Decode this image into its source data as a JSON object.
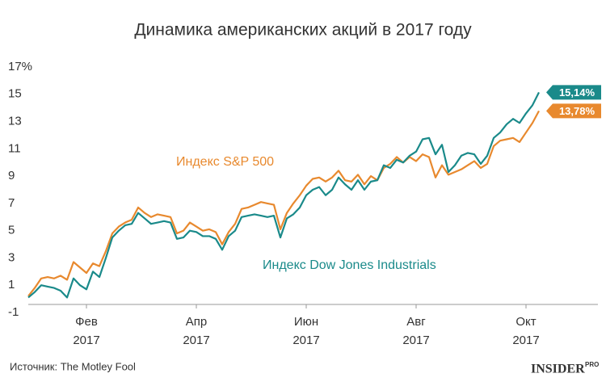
{
  "chart_data": {
    "type": "line",
    "title": "Динамика американских акций в 2017 году",
    "categories": [
      null,
      null,
      null,
      null,
      null,
      null,
      null,
      null,
      null,
      [
        "Фев",
        "2017"
      ],
      null,
      null,
      null,
      null,
      null,
      null,
      null,
      null,
      null,
      null,
      null,
      null,
      null,
      null,
      null,
      null,
      [
        "Апр",
        "2017"
      ],
      null,
      null,
      null,
      null,
      null,
      null,
      null,
      null,
      null,
      null,
      null,
      null,
      null,
      null,
      null,
      null,
      [
        "Июн",
        "2017"
      ],
      null,
      null,
      null,
      null,
      null,
      null,
      null,
      null,
      null,
      null,
      null,
      null,
      null,
      null,
      null,
      null,
      [
        "Авг",
        "2017"
      ],
      null,
      null,
      null,
      null,
      null,
      null,
      null,
      null,
      null,
      null,
      null,
      null,
      null,
      null,
      null,
      null,
      [
        "Окт",
        "2017"
      ],
      null,
      null
    ],
    "series": [
      {
        "name": "Индекс S&P 500",
        "color": "#e8892e",
        "end_label": "13,78%",
        "values": [
          0.2,
          0.8,
          1.5,
          1.6,
          1.5,
          1.7,
          1.4,
          2.7,
          2.3,
          1.9,
          2.6,
          2.4,
          3.5,
          4.8,
          5.3,
          5.6,
          5.8,
          6.7,
          6.3,
          6.0,
          6.2,
          6.1,
          6.0,
          4.8,
          5.0,
          5.6,
          5.3,
          5.0,
          5.1,
          4.9,
          4.0,
          4.9,
          5.5,
          6.6,
          6.7,
          6.9,
          7.1,
          7.0,
          6.9,
          5.1,
          6.3,
          7.0,
          7.6,
          8.3,
          8.8,
          8.9,
          8.6,
          8.9,
          9.4,
          8.7,
          8.6,
          9.1,
          8.4,
          9.0,
          8.7,
          9.6,
          9.9,
          10.4,
          10.0,
          10.4,
          10.1,
          10.6,
          10.4,
          8.9,
          9.8,
          9.1,
          9.3,
          9.5,
          9.8,
          10.1,
          9.6,
          9.9,
          11.2,
          11.6,
          11.7,
          11.8,
          11.5,
          12.2,
          12.9,
          13.78
        ]
      },
      {
        "name": "Индекс Dow Jones Industrials",
        "color": "#1a8a8a",
        "end_label": "15,14%",
        "values": [
          0.1,
          0.5,
          1.0,
          0.9,
          0.8,
          0.6,
          0.1,
          1.5,
          1.0,
          0.7,
          2.0,
          1.6,
          3.0,
          4.5,
          5.0,
          5.4,
          5.5,
          6.3,
          5.9,
          5.5,
          5.6,
          5.7,
          5.6,
          4.4,
          4.5,
          5.0,
          4.9,
          4.6,
          4.6,
          4.4,
          3.6,
          4.6,
          5.0,
          6.0,
          6.1,
          6.2,
          6.1,
          6.0,
          6.1,
          4.5,
          5.9,
          6.2,
          6.7,
          7.6,
          8.0,
          8.2,
          7.6,
          8.0,
          8.9,
          8.4,
          8.0,
          8.7,
          8.0,
          8.6,
          8.7,
          9.8,
          9.6,
          10.2,
          10.0,
          10.5,
          10.8,
          11.7,
          11.8,
          10.6,
          11.3,
          9.3,
          9.8,
          10.5,
          10.7,
          10.6,
          9.9,
          10.5,
          11.8,
          12.2,
          12.8,
          13.2,
          12.9,
          13.6,
          14.2,
          15.14
        ]
      }
    ],
    "ylim": [
      -1,
      17
    ],
    "yticks": [
      -1,
      1,
      3,
      5,
      7,
      9,
      11,
      13,
      15,
      {
        "value": 17,
        "label": "17%"
      }
    ]
  },
  "footer": {
    "source": "Источник: The Motley Fool",
    "logo": "INSIDER",
    "logo_sup": "PRO"
  }
}
